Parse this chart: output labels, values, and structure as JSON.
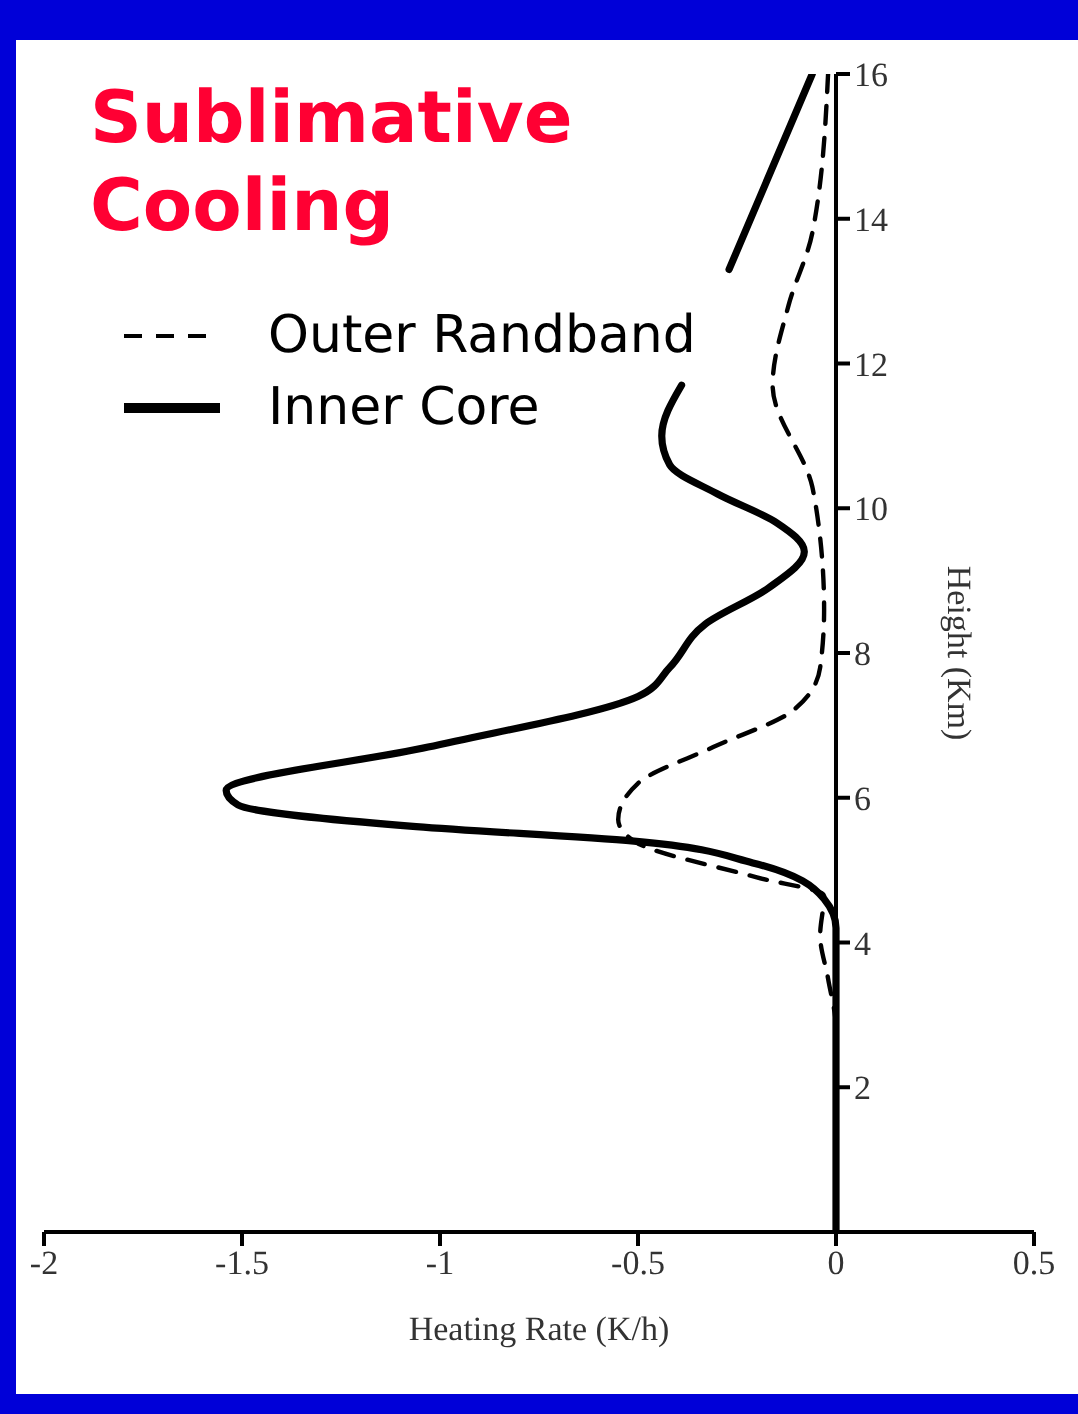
{
  "chart_data": {
    "type": "line",
    "title": "Sublimative Cooling",
    "xlabel": "Heating Rate (K/h)",
    "ylabel": "Height (Km)",
    "xlim": [
      -2,
      0.5
    ],
    "xticks": [
      -2,
      -1.5,
      -1,
      -0.5,
      0,
      0.5
    ],
    "ylim": [
      0,
      16
    ],
    "yticks": [
      2,
      4,
      6,
      8,
      10,
      12,
      14,
      16
    ],
    "legend": "top left",
    "marker": "none",
    "grid": false,
    "series": [
      {
        "name": "Outer Randband",
        "color": "#000000",
        "line_style": "dashed",
        "x": [
          -0.02,
          -0.06,
          -0.12,
          -0.16,
          -0.06,
          -0.05,
          -0.03,
          -0.04,
          -0.11,
          -0.31,
          -0.5,
          -0.55,
          -0.51,
          -0.2,
          -0.03,
          -0.04,
          -0.02,
          0,
          0
        ],
        "values": [
          16,
          13.8,
          12.8,
          11.7,
          10.3,
          10,
          8.6,
          7.8,
          7.2,
          6.7,
          6.2,
          5.7,
          5.4,
          4.9,
          4.65,
          4.1,
          3.5,
          2.8,
          0
        ]
      },
      {
        "name": "Inner Core",
        "color": "#000000",
        "line_style": "solid",
        "x": [
          -0.06,
          -0.27,
          null,
          -0.39,
          -0.44,
          -0.42,
          -0.3,
          -0.15,
          -0.08,
          -0.17,
          -0.33,
          -0.42,
          -0.5,
          -1.03,
          -1.54,
          -1.51,
          -1.06,
          -0.51,
          -0.21,
          -0.03,
          0,
          0
        ],
        "values": [
          16,
          13.3,
          null,
          11.7,
          11,
          10.6,
          10.2,
          9.8,
          9.4,
          8.9,
          8.4,
          7.8,
          7.4,
          6.7,
          6.1,
          5.9,
          5.6,
          5.4,
          5.1,
          4.6,
          4.2,
          0
        ]
      }
    ]
  }
}
